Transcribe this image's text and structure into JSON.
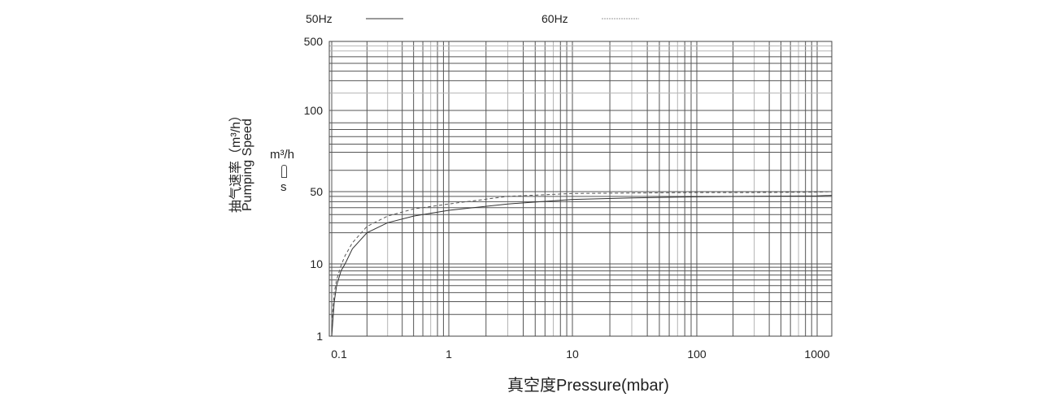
{
  "chart_data": {
    "type": "line",
    "title": "",
    "xlabel": "真空度Pressure(mbar)",
    "ylabel_cn": "抽气速率（m³/h）",
    "ylabel_en": "Pumping Speed",
    "y_unit_top": "m³/h",
    "y_unit_bottom": "s",
    "x_scale": "log",
    "y_scale": "log",
    "xlim": [
      0.1,
      1200
    ],
    "ylim": [
      1,
      500
    ],
    "x_ticks": [
      {
        "v": 0.1,
        "label": "0.1"
      },
      {
        "v": 1,
        "label": "1"
      },
      {
        "v": 10,
        "label": "10"
      },
      {
        "v": 100,
        "label": "100"
      },
      {
        "v": 1000,
        "label": "1000"
      }
    ],
    "y_ticks": [
      {
        "v": 1,
        "label": "1"
      },
      {
        "v": 10,
        "label": "10"
      },
      {
        "v": 50,
        "label": "50"
      },
      {
        "v": 100,
        "label": "100"
      },
      {
        "v": 500,
        "label": "500"
      }
    ],
    "grid": true,
    "legend_placement": "top",
    "series": [
      {
        "name": "50Hz",
        "style": "solid",
        "color": "#333333",
        "x": [
          0.1,
          0.105,
          0.11,
          0.12,
          0.13,
          0.15,
          0.2,
          0.3,
          0.5,
          1,
          3,
          10,
          30,
          100,
          300,
          1000,
          1200
        ],
        "y": [
          1,
          3,
          5,
          8,
          10,
          14,
          20,
          25,
          29,
          33,
          38,
          42,
          43.5,
          44.5,
          45,
          45.5,
          46
        ]
      },
      {
        "name": "60Hz",
        "style": "dashed",
        "color": "#555555",
        "x": [
          0.1,
          0.105,
          0.11,
          0.12,
          0.13,
          0.15,
          0.2,
          0.3,
          0.5,
          1,
          3,
          10,
          30,
          100,
          300,
          1000,
          1200
        ],
        "y": [
          1.5,
          4,
          6,
          9.5,
          12,
          16,
          23,
          29,
          34,
          38,
          45,
          48,
          48.5,
          49,
          49,
          49.5,
          50
        ]
      }
    ]
  }
}
